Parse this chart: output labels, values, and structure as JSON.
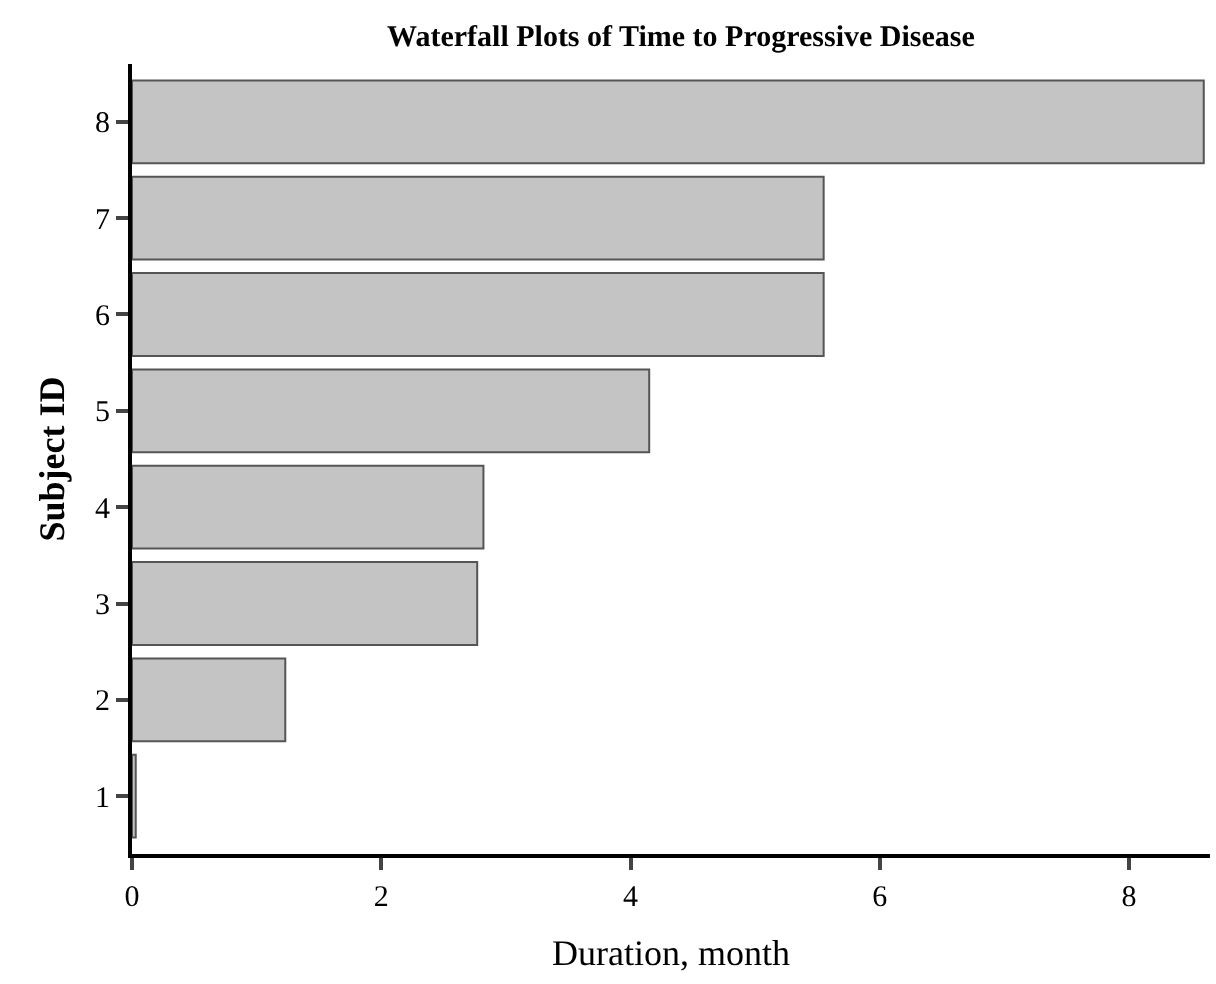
{
  "chart_data": {
    "type": "bar",
    "orientation": "horizontal",
    "title": "Waterfall Plots of Time to Progressive Disease",
    "xlabel": "Duration, month",
    "ylabel": "Subject ID",
    "categories": [
      "8",
      "7",
      "6",
      "5",
      "4",
      "3",
      "2",
      "1"
    ],
    "values": [
      8.6,
      5.55,
      5.55,
      4.15,
      2.82,
      2.77,
      1.23,
      0.03
    ],
    "color": "#c4c4c4",
    "xlim": [
      0,
      8.65
    ],
    "xticks": [
      0,
      2,
      4,
      6,
      8
    ]
  }
}
